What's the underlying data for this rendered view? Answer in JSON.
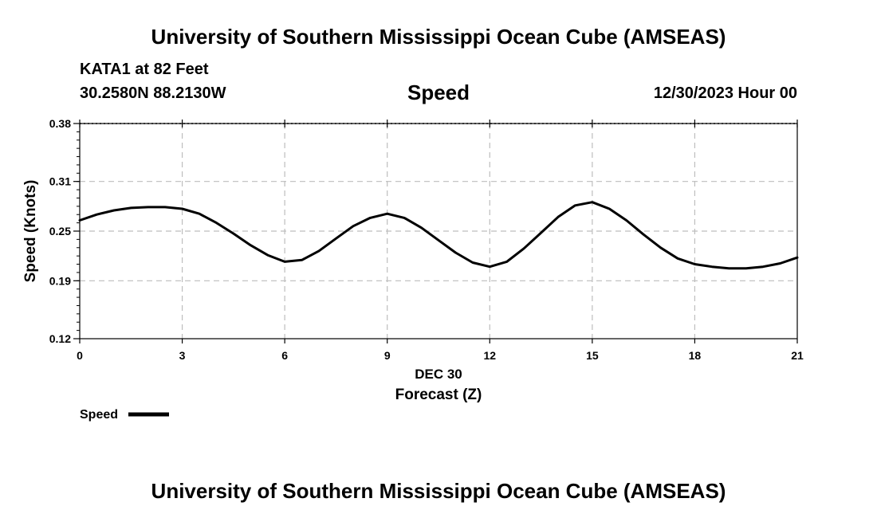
{
  "header": {
    "title": "University of Southern Mississippi Ocean Cube (AMSEAS)",
    "station": "KATA1 at 82 Feet",
    "location": "30.2580N  88.2130W",
    "variable": "Speed",
    "datetime": "12/30/2023 Hour 00"
  },
  "footer": {
    "title": "University of Southern Mississippi Ocean Cube (AMSEAS)"
  },
  "legend": {
    "label": "Speed",
    "color": "#000000"
  },
  "chart_data": {
    "type": "line",
    "title": "Speed",
    "xlabel": "Forecast (Z)",
    "xlabel_date": "DEC 30",
    "ylabel": "Speed (Knots)",
    "xlim": [
      0,
      21
    ],
    "ylim": [
      0.12,
      0.38
    ],
    "xticks": [
      0,
      3,
      6,
      9,
      12,
      15,
      18,
      21
    ],
    "xtick_labels": [
      "0",
      "3",
      "6",
      "9",
      "12",
      "15",
      "18",
      "21"
    ],
    "yticks": [
      0.12,
      0.19,
      0.25,
      0.31,
      0.38
    ],
    "ytick_labels": [
      "0.12",
      "0.19",
      "0.25",
      "0.31",
      "0.38"
    ],
    "grid": true,
    "series": [
      {
        "name": "Speed",
        "color": "#000000",
        "x": [
          0,
          0.5,
          1,
          1.5,
          2,
          2.5,
          3,
          3.5,
          4,
          4.5,
          5,
          5.5,
          6,
          6.5,
          7,
          7.5,
          8,
          8.5,
          9,
          9.5,
          10,
          10.5,
          11,
          11.5,
          12,
          12.5,
          13,
          13.5,
          14,
          14.5,
          15,
          15.5,
          16,
          16.5,
          17,
          17.5,
          18,
          18.5,
          19,
          19.5,
          20,
          20.5,
          21
        ],
        "y": [
          0.263,
          0.27,
          0.275,
          0.278,
          0.279,
          0.279,
          0.277,
          0.271,
          0.26,
          0.247,
          0.233,
          0.221,
          0.213,
          0.215,
          0.226,
          0.241,
          0.256,
          0.266,
          0.271,
          0.266,
          0.254,
          0.239,
          0.224,
          0.212,
          0.207,
          0.213,
          0.229,
          0.248,
          0.267,
          0.281,
          0.285,
          0.277,
          0.263,
          0.246,
          0.23,
          0.217,
          0.21,
          0.207,
          0.205,
          0.205,
          0.207,
          0.211,
          0.218
        ]
      }
    ]
  }
}
